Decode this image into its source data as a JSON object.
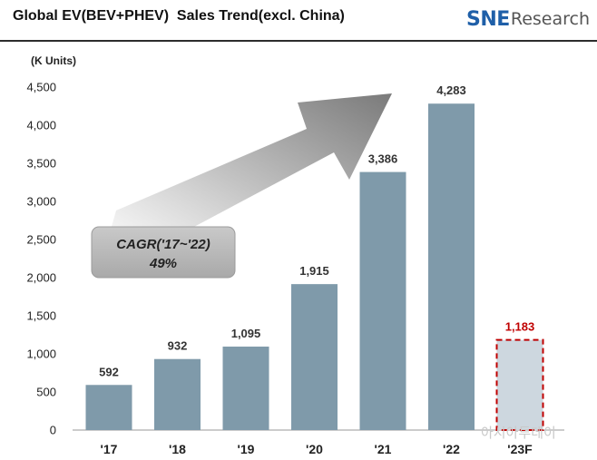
{
  "header": {
    "title": "Global EV(BEV+PHEV)  Sales Trend(excl. China)",
    "logo_mark": "SNE",
    "logo_text": "Research"
  },
  "watermark": "아시아투데이",
  "colors": {
    "bar": "#7f9aaa",
    "forecast_fill": "#cdd7df",
    "forecast_border": "#c00000",
    "forecast_label": "#c00000",
    "arrow": "#8c8c8c"
  },
  "chart_data": {
    "type": "bar",
    "title": "Global EV(BEV+PHEV)  Sales Trend(excl. China)",
    "unit_label": "(K Units)",
    "xlabel": "",
    "ylabel": "",
    "categories": [
      "'17",
      "'18",
      "'19",
      "'20",
      "'21",
      "'22",
      "'23F"
    ],
    "values": [
      592,
      932,
      1095,
      1915,
      3386,
      4283,
      1183
    ],
    "value_labels": [
      "592",
      "932",
      "1,095",
      "1,915",
      "3,386",
      "4,283",
      "1,183"
    ],
    "forecast_index": 6,
    "ylim": [
      0,
      4500
    ],
    "yticks": [
      0,
      500,
      1000,
      1500,
      2000,
      2500,
      3000,
      3500,
      4000,
      4500
    ],
    "ytick_labels": [
      "0",
      "500",
      "1,000",
      "1,500",
      "2,000",
      "2,500",
      "3,000",
      "3,500",
      "4,000",
      "4,500"
    ],
    "grid": false,
    "annotation": {
      "line1": "CAGR('17~'22)",
      "line2": "49%"
    }
  }
}
